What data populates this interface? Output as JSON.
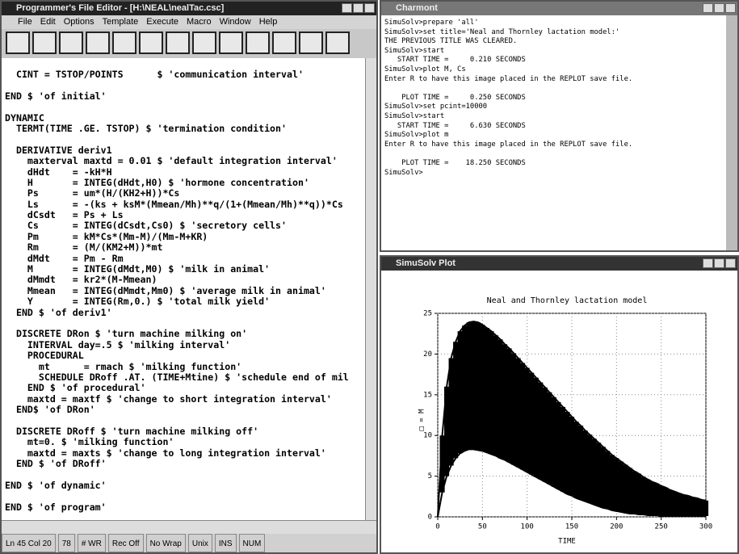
{
  "editor": {
    "title": "Programmer's File Editor - [H:\\NEAL\\nealTac.csc]",
    "menu": [
      "File",
      "Edit",
      "Options",
      "Template",
      "Execute",
      "Macro",
      "Window",
      "Help"
    ],
    "blocks": [
      [
        "  CINT = TSTOP/POINTS      $ 'communication interval'"
      ],
      [
        "END $ 'of initial'"
      ],
      [
        "DYNAMIC",
        "  TERMT(TIME .GE. TSTOP) $ 'termination condition'"
      ],
      [
        "  DERIVATIVE deriv1",
        "    maxterval maxtd = 0.01 $ 'default integration interval'",
        "    dHdt    = -kH*H",
        "    H       = INTEG(dHdt,H0) $ 'hormone concentration'",
        "    Ps      = um*(H/(KH2+H))*Cs",
        "    Ls      = -(ks + ksM*(Mmean/Mh)**q/(1+(Mmean/Mh)**q))*Cs",
        "    dCsdt   = Ps + Ls",
        "    Cs      = INTEG(dCsdt,Cs0) $ 'secretory cells'",
        "    Pm      = kM*Cs*(Mm-M)/(Mm-M+KR)",
        "    Rm      = (M/(KM2+M))*mt",
        "    dMdt    = Pm - Rm",
        "    M       = INTEG(dMdt,M0) $ 'milk in animal'",
        "    dMmdt   = kr2*(M-Mmean)",
        "    Mmean   = INTEG(dMmdt,Mm0) $ 'average milk in animal'",
        "    Y       = INTEG(Rm,0.) $ 'total milk yield'",
        "  END $ 'of deriv1'"
      ],
      [
        "  DISCRETE DRon $ 'turn machine milking on'",
        "    INTERVAL day=.5 $ 'milking interval'",
        "    PROCEDURAL",
        "      mt      = rmach $ 'milking function'",
        "      SCHEDULE DRoff .AT. (TIME+Mtine) $ 'schedule end of mil",
        "    END $ 'of procedural'",
        "    maxtd = maxtf $ 'change to short integration interval'",
        "  END$ 'of DRon'"
      ],
      [
        "  DISCRETE DRoff $ 'turn machine milking off'",
        "    mt=0. $ 'milking function'",
        "    maxtd = maxts $ 'change to long integration interval'",
        "  END $ 'of DRoff'"
      ],
      [
        "END $ 'of dynamic'"
      ],
      [
        "END $ 'of program'"
      ]
    ],
    "status": [
      "Ln 45 Col 20",
      "78",
      "# WR",
      "Rec Off",
      "No Wrap",
      "Unix",
      "INS",
      "NUM"
    ]
  },
  "terminal": {
    "title": "Charmont",
    "blocks": [
      [
        "SimuSolv>prepare 'all'",
        "SimuSolv>set title='Neal and Thornley lactation model:'",
        "THE PREVIOUS TITLE WAS CLEARED.",
        "SimuSolv>start",
        "   START TIME =     0.210 SECONDS",
        "SimuSolv>plot M, Cs",
        "Enter R to have this image placed in the REPLOT save file."
      ],
      [
        "    PLOT TIME =     0.250 SECONDS",
        "SimuSolv>set pcint=10000",
        "SimuSolv>start",
        "   START TIME =     6.630 SECONDS",
        "SimuSolv>plot m",
        "Enter R to have this image placed in the REPLOT save file."
      ],
      [
        "    PLOT TIME =    18.250 SECONDS",
        "SimuSolv>"
      ]
    ]
  },
  "plot_window": {
    "title": "SimuSolv Plot"
  },
  "chart_data": {
    "type": "band",
    "title": "Neal and Thornley lactation model",
    "x_label": "TIME",
    "y_label": "□ = M",
    "x": [
      0,
      5,
      10,
      15,
      20,
      25,
      30,
      35,
      40,
      45,
      50,
      55,
      60,
      65,
      70,
      75,
      80,
      85,
      90,
      95,
      100,
      105,
      110,
      115,
      120,
      125,
      130,
      135,
      140,
      145,
      150,
      155,
      160,
      165,
      170,
      175,
      180,
      185,
      190,
      195,
      200,
      205,
      210,
      215,
      220,
      225,
      230,
      235,
      240,
      245,
      250,
      255,
      260,
      265,
      270,
      275,
      280,
      285,
      290,
      295,
      300
    ],
    "series": [
      {
        "color": "#000000",
        "values": [
          0,
          10,
          16,
          19.5,
          21.5,
          22.8,
          23.5,
          23.9,
          24,
          23.9,
          23.6,
          23.2,
          22.8,
          22.3,
          21.8,
          21.2,
          20.7,
          20.1,
          19.5,
          18.9,
          18.3,
          17.7,
          17.1,
          16.5,
          15.9,
          15.3,
          14.7,
          14.1,
          13.5,
          12.9,
          12.3,
          11.7,
          11.2,
          10.6,
          10.1,
          9.6,
          9.1,
          8.6,
          8.1,
          7.6,
          7.2,
          6.8,
          6.4,
          6,
          5.6,
          5.3,
          4.9,
          4.6,
          4.3,
          4.1,
          3.8,
          3.6,
          3.3,
          3.1,
          2.9,
          2.7,
          2.6,
          2.4,
          2.3,
          2.1,
          2
        ]
      },
      {
        "color": "#000000",
        "values": [
          0,
          3,
          5,
          6.3,
          7.2,
          7.8,
          8.1,
          8.3,
          8.3,
          8.2,
          8.1,
          7.9,
          7.7,
          7.5,
          7.2,
          7,
          6.7,
          6.4,
          6.1,
          5.8,
          5.5,
          5.2,
          4.9,
          4.6,
          4.3,
          4,
          3.7,
          3.4,
          3.1,
          2.8,
          2.6,
          2.3,
          2.1,
          1.9,
          1.7,
          1.5,
          1.3,
          1.1,
          1,
          0.8,
          0.7,
          0.6,
          0.5,
          0.4,
          0.4,
          0.3,
          0.3,
          0.2,
          0.2,
          0.2,
          0.1,
          0.1,
          0.1,
          0.1,
          0.1,
          0.1,
          0.1,
          0.1,
          0.1,
          0.1,
          0.1
        ]
      }
    ],
    "xlim": [
      0,
      300
    ],
    "xticks": [
      0,
      50,
      100,
      150,
      200,
      250,
      300
    ],
    "ylim": [
      0,
      25
    ],
    "yticks": [
      0,
      5,
      10,
      15,
      20,
      25
    ],
    "grid": true
  }
}
